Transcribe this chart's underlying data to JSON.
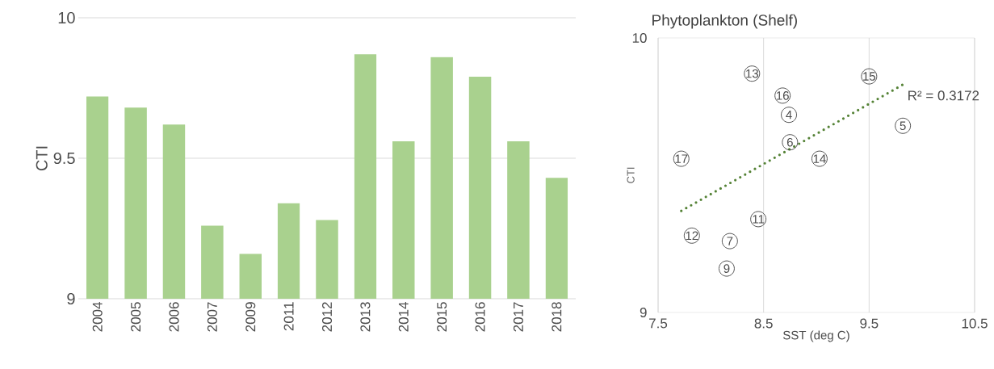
{
  "chart_data": [
    {
      "type": "bar",
      "ylabel": "CTI",
      "categories": [
        "2004",
        "2005",
        "2006",
        "2007",
        "2009",
        "2011",
        "2012",
        "2013",
        "2014",
        "2015",
        "2016",
        "2017",
        "2018"
      ],
      "values": [
        9.72,
        9.68,
        9.62,
        9.26,
        9.16,
        9.34,
        9.28,
        9.87,
        9.56,
        9.86,
        9.79,
        9.56,
        9.43
      ],
      "color": "#a9d18e",
      "ylim": [
        9,
        10
      ],
      "yticks": [
        9,
        9.5,
        10
      ],
      "grid": "y"
    },
    {
      "type": "scatter",
      "title": "Phytoplankton (Shelf)",
      "xlabel": "SST (deg C)",
      "ylabel": "CTI",
      "xlim": [
        7.5,
        10.5
      ],
      "xticks": [
        7.5,
        8.5,
        9.5,
        10.5
      ],
      "ylim": [
        9,
        10
      ],
      "yticks": [
        9,
        10
      ],
      "grid": "x",
      "series": [
        {
          "type": "scatter",
          "color": "#404040",
          "marker": "circle",
          "x": [
            8.74,
            9.82,
            8.75,
            8.18,
            8.15,
            8.45,
            7.82,
            8.39,
            9.03,
            9.5,
            8.68,
            7.72
          ],
          "values": [
            9.72,
            9.68,
            9.62,
            9.26,
            9.16,
            9.34,
            9.28,
            9.87,
            9.56,
            9.86,
            9.79,
            9.56
          ]
        },
        {
          "type": "line",
          "color": "#548235",
          "line_style": "dotted",
          "x": [
            7.72,
            9.82
          ],
          "values": [
            9.37,
            9.83
          ]
        }
      ],
      "annotations": [
        {
          "text": "4",
          "x": 8.74,
          "y": 9.72
        },
        {
          "text": "5",
          "x": 9.82,
          "y": 9.68
        },
        {
          "text": "6",
          "x": 8.75,
          "y": 9.62
        },
        {
          "text": "7",
          "x": 8.18,
          "y": 9.26
        },
        {
          "text": "9",
          "x": 8.15,
          "y": 9.16
        },
        {
          "text": "11",
          "x": 8.45,
          "y": 9.34
        },
        {
          "text": "12",
          "x": 7.82,
          "y": 9.28
        },
        {
          "text": "13",
          "x": 8.39,
          "y": 9.87
        },
        {
          "text": "14",
          "x": 9.03,
          "y": 9.56
        },
        {
          "text": "15",
          "x": 9.5,
          "y": 9.86
        },
        {
          "text": "16",
          "x": 8.68,
          "y": 9.79
        },
        {
          "text": "17",
          "x": 7.72,
          "y": 9.56
        },
        "R² = 0.3172"
      ]
    }
  ]
}
